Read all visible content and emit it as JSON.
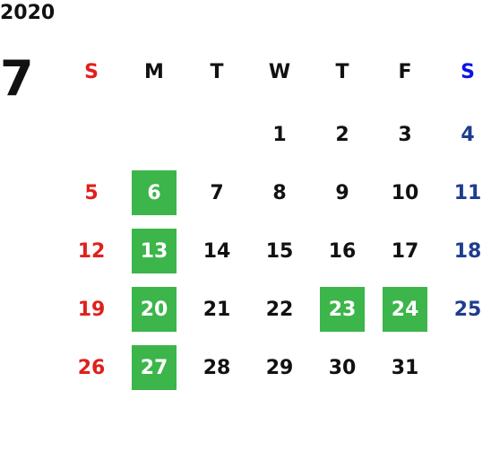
{
  "year": "2020",
  "month": "7",
  "weekdays": [
    "S",
    "M",
    "T",
    "W",
    "T",
    "F",
    "S"
  ],
  "weeks": [
    [
      null,
      null,
      null,
      {
        "day": "1",
        "highlight": false
      },
      {
        "day": "2",
        "highlight": false
      },
      {
        "day": "3",
        "highlight": false
      },
      {
        "day": "4",
        "highlight": false
      }
    ],
    [
      {
        "day": "5",
        "highlight": false
      },
      {
        "day": "6",
        "highlight": true
      },
      {
        "day": "7",
        "highlight": false
      },
      {
        "day": "8",
        "highlight": false
      },
      {
        "day": "9",
        "highlight": false
      },
      {
        "day": "10",
        "highlight": false
      },
      {
        "day": "11",
        "highlight": false
      }
    ],
    [
      {
        "day": "12",
        "highlight": false
      },
      {
        "day": "13",
        "highlight": true
      },
      {
        "day": "14",
        "highlight": false
      },
      {
        "day": "15",
        "highlight": false
      },
      {
        "day": "16",
        "highlight": false
      },
      {
        "day": "17",
        "highlight": false
      },
      {
        "day": "18",
        "highlight": false
      }
    ],
    [
      {
        "day": "19",
        "highlight": false
      },
      {
        "day": "20",
        "highlight": true
      },
      {
        "day": "21",
        "highlight": false
      },
      {
        "day": "22",
        "highlight": false
      },
      {
        "day": "23",
        "highlight": true
      },
      {
        "day": "24",
        "highlight": true
      },
      {
        "day": "25",
        "highlight": false
      }
    ],
    [
      {
        "day": "26",
        "highlight": false
      },
      {
        "day": "27",
        "highlight": true
      },
      {
        "day": "28",
        "highlight": false
      },
      {
        "day": "29",
        "highlight": false
      },
      {
        "day": "30",
        "highlight": false
      },
      {
        "day": "31",
        "highlight": false
      },
      null
    ]
  ]
}
